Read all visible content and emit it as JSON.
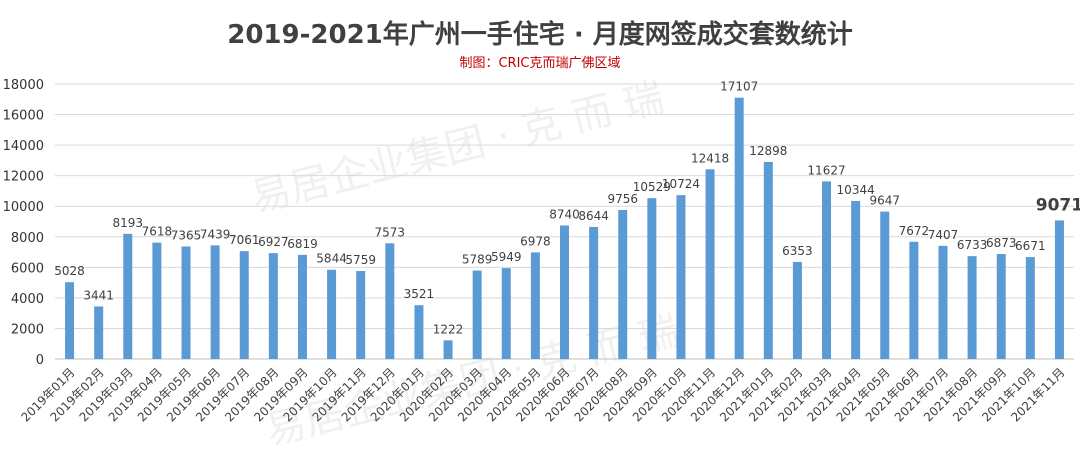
{
  "chart_data": {
    "type": "bar",
    "title": "2019-2021年广州一手住宅 · 月度网签成交套数统计",
    "subtitle": "制图：CRIC克而瑞广佛区域",
    "categories": [
      "2019年01月",
      "2019年02月",
      "2019年03月",
      "2019年04月",
      "2019年05月",
      "2019年06月",
      "2019年07月",
      "2019年08月",
      "2019年09月",
      "2019年10月",
      "2019年11月",
      "2019年12月",
      "2020年01月",
      "2020年02月",
      "2020年03月",
      "2020年04月",
      "2020年05月",
      "2020年06月",
      "2020年07月",
      "2020年08月",
      "2020年09月",
      "2020年10月",
      "2020年11月",
      "2020年12月",
      "2021年01月",
      "2021年02月",
      "2021年03月",
      "2021年04月",
      "2021年05月",
      "2021年06月",
      "2021年07月",
      "2021年08月",
      "2021年09月",
      "2021年10月",
      "2021年11月"
    ],
    "values": [
      5028,
      3441,
      8193,
      7618,
      7365,
      7439,
      7061,
      6927,
      6819,
      5844,
      5759,
      7573,
      3521,
      1222,
      5789,
      5949,
      6978,
      8740,
      8644,
      9756,
      10529,
      10724,
      12418,
      17107,
      12898,
      6353,
      11627,
      10344,
      9647,
      7672,
      7407,
      6733,
      6873,
      6671,
      9071
    ],
    "yticks": [
      0,
      2000,
      4000,
      6000,
      8000,
      10000,
      12000,
      14000,
      16000,
      18000
    ],
    "ylim": [
      0,
      18000
    ],
    "grid": true,
    "legend": "none",
    "highlight_last": true,
    "bar_color": "#5B9BD5",
    "subtitle_color": "#C00000",
    "watermark": "易居企业集团 · 克 而 瑞"
  }
}
